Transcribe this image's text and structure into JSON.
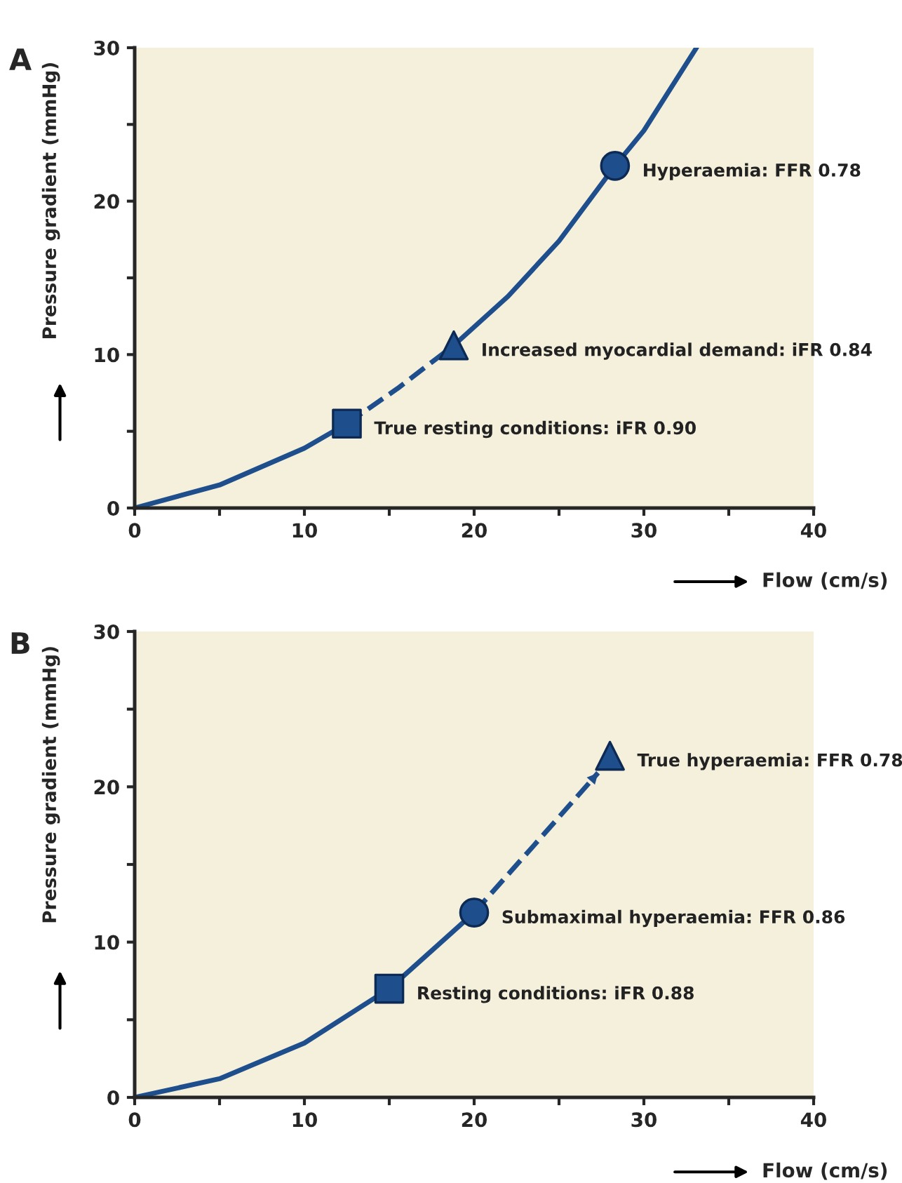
{
  "chart_data": [
    {
      "type": "line",
      "title": "A",
      "xlabel": "Flow (cm/s)",
      "ylabel": "Pressure gradient (mmHg)",
      "xlim": [
        0,
        40
      ],
      "ylim": [
        0,
        30
      ],
      "xticks": [
        0,
        {
          "value": 5,
          "label": null
        },
        10,
        {
          "value": 15,
          "label": null
        },
        20,
        {
          "value": 25,
          "label": null
        },
        30,
        {
          "value": 35,
          "label": null
        },
        40
      ],
      "yticks": [
        0,
        {
          "value": 5,
          "label": null
        },
        10,
        {
          "value": 15,
          "label": null
        },
        20,
        {
          "value": 25,
          "label": null
        },
        30
      ],
      "grid": false,
      "legend": false,
      "series": [
        {
          "line_style": "solid",
          "marker": "none",
          "color": "#1f4e8c",
          "x": [
            0,
            5,
            10,
            12.5
          ],
          "values": [
            0,
            1.5,
            3.9,
            5.5
          ]
        },
        {
          "line_style": "dashed",
          "marker": "none",
          "color": "#1f4e8c",
          "x": [
            12.5,
            15.5,
            18.8
          ],
          "values": [
            5.5,
            7.8,
            10.6
          ]
        },
        {
          "line_style": "solid",
          "marker": "none",
          "color": "#1f4e8c",
          "x": [
            18.8,
            22,
            25,
            28.3,
            30,
            33.1
          ],
          "values": [
            10.6,
            13.8,
            17.4,
            22.3,
            24.6,
            30
          ]
        },
        {
          "type": "scatter",
          "marker": "square",
          "color": "#1f4e8c",
          "x": [
            12.5
          ],
          "values": [
            5.5
          ]
        },
        {
          "type": "scatter",
          "marker": "triangle",
          "color": "#1f4e8c",
          "x": [
            18.8
          ],
          "values": [
            10.6
          ]
        },
        {
          "type": "scatter",
          "marker": "circle",
          "color": "#1f4e8c",
          "x": [
            28.3
          ],
          "values": [
            22.3
          ]
        }
      ],
      "annotations": [
        {
          "text": "True resting conditions: iFR 0.90",
          "x": 12.5,
          "y": 5.5
        },
        {
          "text": "Increased myocardial demand: iFR 0.84",
          "x": 18.8,
          "y": 10.6
        },
        {
          "text": "Hyperaemia: FFR 0.78",
          "x": 28.3,
          "y": 22.3
        }
      ]
    },
    {
      "type": "line",
      "title": "B",
      "xlabel": "Flow (cm/s)",
      "ylabel": "Pressure gradient (mmHg)",
      "xlim": [
        0,
        40
      ],
      "ylim": [
        0,
        30
      ],
      "xticks": [
        0,
        {
          "value": 5,
          "label": null
        },
        10,
        {
          "value": 15,
          "label": null
        },
        20,
        {
          "value": 25,
          "label": null
        },
        30,
        {
          "value": 35,
          "label": null
        },
        40
      ],
      "yticks": [
        0,
        {
          "value": 5,
          "label": null
        },
        10,
        {
          "value": 15,
          "label": null
        },
        20,
        {
          "value": 25,
          "label": null
        },
        30
      ],
      "grid": false,
      "legend": false,
      "series": [
        {
          "line_style": "solid",
          "marker": "none",
          "color": "#1f4e8c",
          "x": [
            0,
            5,
            10,
            15,
            20
          ],
          "values": [
            0,
            1.2,
            3.5,
            7.0,
            11.9
          ]
        },
        {
          "line_style": "dashed",
          "marker": "none",
          "color": "#1f4e8c",
          "x": [
            20,
            23.5,
            27.3
          ],
          "values": [
            11.9,
            16.2,
            20.9
          ]
        },
        {
          "type": "scatter",
          "marker": "square",
          "color": "#1f4e8c",
          "x": [
            15
          ],
          "values": [
            7.0
          ]
        },
        {
          "type": "scatter",
          "marker": "circle",
          "color": "#1f4e8c",
          "x": [
            20
          ],
          "values": [
            11.9
          ]
        },
        {
          "type": "scatter",
          "marker": "triangle",
          "color": "#1f4e8c",
          "x": [
            28
          ],
          "values": [
            22.0
          ]
        }
      ],
      "annotations": [
        {
          "text": "Resting conditions: iFR 0.88",
          "x": 15,
          "y": 7.0
        },
        {
          "text": "Submaximal hyperaemia: FFR 0.86",
          "x": 20,
          "y": 11.9
        },
        {
          "text": "True hyperaemia: FFR 0.78",
          "x": 28,
          "y": 22.0
        }
      ]
    }
  ]
}
